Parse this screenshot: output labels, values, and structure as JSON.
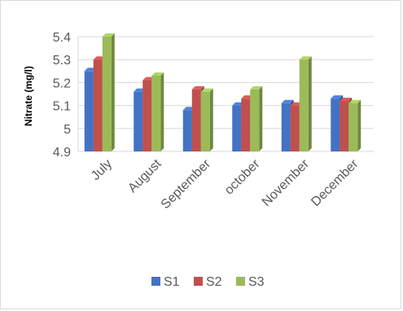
{
  "chart_data": {
    "type": "bar",
    "ylabel": "Nitrate (mg/l)",
    "xlabel": "",
    "categories": [
      "July",
      "August",
      "September",
      "october",
      "November",
      "December"
    ],
    "series": [
      {
        "name": "S1",
        "color": "#4472C4",
        "values": [
          5.25,
          5.16,
          5.08,
          5.1,
          5.11,
          5.13
        ]
      },
      {
        "name": "S2",
        "color": "#C0504D",
        "values": [
          5.3,
          5.21,
          5.17,
          5.13,
          5.1,
          5.12
        ]
      },
      {
        "name": "S3",
        "color": "#9BBB59",
        "values": [
          5.4,
          5.23,
          5.16,
          5.17,
          5.3,
          5.11
        ]
      }
    ],
    "ylim": [
      4.9,
      5.4
    ],
    "yticks": [
      "5.4",
      "5.3",
      "5.2",
      "5.1",
      "5",
      "4.9"
    ],
    "grid": true,
    "legend_position": "bottom",
    "style": "3d-clustered-column"
  }
}
